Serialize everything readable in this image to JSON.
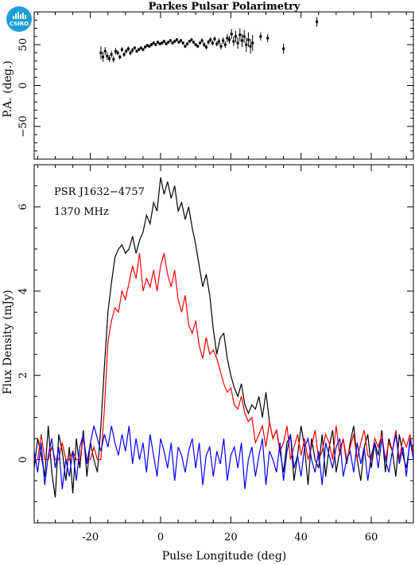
{
  "logo_text": "CSIRO",
  "chart_data": [
    {
      "type": "scatter",
      "title": "Parkes Pulsar Polarimetry",
      "xlabel": "",
      "ylabel": "P.A. (deg.)",
      "xlim": [
        -36,
        72
      ],
      "ylim": [
        -90,
        90
      ],
      "yticks": [
        -50,
        0,
        50
      ],
      "series": [
        {
          "color": "#000000",
          "x": [
            -17,
            -16.4,
            -15.8,
            -15.2,
            -14.6,
            -14,
            -13.4,
            -12.8,
            -12.2,
            -11.6,
            -11,
            -10.4,
            -9.8,
            -9.2,
            -8.6,
            -8,
            -7.4,
            -6.8,
            -6.2,
            -5.6,
            -5,
            -4.4,
            -3.8,
            -3.2,
            -2.6,
            -2,
            -1.4,
            -0.8,
            -0.2,
            0.4,
            1,
            1.6,
            2.2,
            2.8,
            3.4,
            4,
            4.6,
            5.2,
            5.8,
            6.4,
            7,
            7.6,
            8.2,
            8.8,
            9.4,
            10,
            10.6,
            11.2,
            11.8,
            12.4,
            13,
            13.6,
            14.2,
            14.8,
            15.4,
            16,
            16.6,
            17.2,
            17.8,
            18.4,
            19,
            19.6,
            20.2,
            20.8,
            21.4,
            22,
            22.6,
            23.2,
            23.8,
            24.4,
            25,
            25.6,
            26.2,
            28.5,
            30.5,
            35,
            44.5
          ],
          "y": [
            40,
            35,
            42,
            36,
            33,
            38,
            32,
            42,
            40,
            35,
            44,
            38,
            42,
            45,
            40,
            43,
            46,
            42,
            44,
            46,
            44,
            47,
            49,
            48,
            50,
            52,
            50,
            53,
            51,
            52,
            54,
            51,
            53,
            55,
            52,
            54,
            56,
            53,
            55,
            52,
            48,
            51,
            54,
            56,
            53,
            50,
            48,
            52,
            55,
            50,
            47,
            53,
            56,
            52,
            57,
            51,
            54,
            48,
            55,
            50,
            58,
            56,
            63,
            54,
            60,
            52,
            62,
            55,
            60,
            50,
            56,
            48,
            52,
            60,
            58,
            45,
            78
          ],
          "err": [
            8,
            6,
            5,
            5,
            4,
            4,
            4,
            4,
            3,
            3,
            3,
            3,
            3,
            3,
            3,
            3,
            2,
            2,
            2,
            2,
            2,
            2,
            2,
            2,
            2,
            2,
            2,
            2,
            2,
            2,
            2,
            2,
            2,
            2,
            2,
            2,
            2,
            2,
            2,
            2,
            2,
            2,
            2,
            2,
            2,
            2,
            2,
            2,
            3,
            3,
            3,
            3,
            3,
            3,
            3,
            3,
            4,
            4,
            4,
            4,
            5,
            5,
            6,
            6,
            7,
            7,
            8,
            8,
            8,
            9,
            9,
            9,
            10,
            5,
            5,
            6,
            6
          ]
        }
      ]
    },
    {
      "type": "line",
      "title": "",
      "xlabel": "Pulse Longitude (deg)",
      "ylabel": "Flux Density (mJy)",
      "xlim": [
        -36,
        72
      ],
      "ylim": [
        -1.5,
        7.0
      ],
      "xticks": [
        -20,
        0,
        20,
        40,
        60
      ],
      "yticks": [
        0,
        2,
        4,
        6
      ],
      "annotations": [
        "PSR J1632−4757",
        "1370 MHz"
      ],
      "series": [
        {
          "color": "#000000",
          "x": [
            -36,
            -35,
            -34,
            -33,
            -32,
            -31,
            -30,
            -29,
            -28,
            -27,
            -26,
            -25,
            -24,
            -23,
            -22,
            -21,
            -20,
            -19,
            -18,
            -17,
            -16,
            -15,
            -14,
            -13,
            -12,
            -11,
            -10,
            -9,
            -8,
            -7,
            -6,
            -5,
            -4,
            -3,
            -2,
            -1,
            0,
            1,
            2,
            3,
            4,
            5,
            6,
            7,
            8,
            9,
            10,
            11,
            12,
            13,
            14,
            15,
            16,
            17,
            18,
            19,
            20,
            21,
            22,
            23,
            24,
            25,
            26,
            27,
            28,
            29,
            30,
            31,
            32,
            33,
            34,
            35,
            36,
            37,
            38,
            39,
            40,
            41,
            42,
            43,
            44,
            45,
            46,
            47,
            48,
            49,
            50,
            51,
            52,
            53,
            54,
            55,
            56,
            57,
            58,
            59,
            60,
            61,
            62,
            63,
            64,
            65,
            66,
            67,
            68,
            69,
            70,
            71,
            72
          ],
          "y": [
            -0.2,
            0.5,
            0.1,
            -0.4,
            0.8,
            -0.3,
            -0.9,
            0.6,
            0.2,
            -0.5,
            0.3,
            -0.8,
            0.5,
            -0.2,
            0.7,
            -0.4,
            0.4,
            0.0,
            -0.3,
            0.8,
            2.2,
            3.5,
            4.2,
            4.8,
            5.0,
            5.1,
            4.9,
            5.0,
            5.3,
            4.9,
            5.2,
            5.4,
            5.8,
            5.6,
            6.1,
            5.9,
            6.7,
            6.3,
            6.6,
            6.2,
            6.5,
            5.9,
            6.1,
            5.7,
            6.0,
            5.5,
            5.1,
            4.6,
            4.1,
            4.4,
            3.9,
            3.1,
            2.5,
            2.9,
            3.0,
            2.4,
            2.0,
            1.7,
            1.5,
            1.8,
            1.3,
            1.1,
            1.3,
            1.2,
            1.5,
            1.0,
            1.6,
            0.9,
            0.5,
            0.7,
            0.2,
            -0.3,
            0.4,
            0.6,
            -0.5,
            0.1,
            0.8,
            0.3,
            -0.6,
            0.5,
            0.0,
            -0.2,
            0.6,
            -0.4,
            0.3,
            0.7,
            -0.3,
            0.2,
            0.5,
            -0.1,
            0.4,
            0.8,
            0.0,
            -0.5,
            0.3,
            0.6,
            -0.2,
            0.4,
            0.1,
            0.7,
            -0.3,
            0.5,
            0.2,
            -0.4,
            0.6,
            0.1,
            -0.2,
            0.4,
            0.3
          ],
          "name": ""
        },
        {
          "color": "#ff0000",
          "x": [
            -36,
            -35,
            -34,
            -33,
            -32,
            -31,
            -30,
            -29,
            -28,
            -27,
            -26,
            -25,
            -24,
            -23,
            -22,
            -21,
            -20,
            -19,
            -18,
            -17,
            -16,
            -15,
            -14,
            -13,
            -12,
            -11,
            -10,
            -9,
            -8,
            -7,
            -6,
            -5,
            -4,
            -3,
            -2,
            -1,
            0,
            1,
            2,
            3,
            4,
            5,
            6,
            7,
            8,
            9,
            10,
            11,
            12,
            13,
            14,
            15,
            16,
            17,
            18,
            19,
            20,
            21,
            22,
            23,
            24,
            25,
            26,
            27,
            28,
            29,
            30,
            31,
            32,
            33,
            34,
            35,
            36,
            37,
            38,
            39,
            40,
            41,
            42,
            43,
            44,
            45,
            46,
            47,
            48,
            49,
            50,
            51,
            52,
            53,
            54,
            55,
            56,
            57,
            58,
            59,
            60,
            61,
            62,
            63,
            64,
            65,
            66,
            67,
            68,
            69,
            70,
            71,
            72
          ],
          "y": [
            0.0,
            0.0,
            0.6,
            0.0,
            0.0,
            0.3,
            0.0,
            0.0,
            0.4,
            0.0,
            0.0,
            0.2,
            0.0,
            0.0,
            0.5,
            0.0,
            0.0,
            0.3,
            0.0,
            0.0,
            1.2,
            2.8,
            3.3,
            3.6,
            3.5,
            4.0,
            3.8,
            4.2,
            4.6,
            4.3,
            4.9,
            4.0,
            4.3,
            4.1,
            4.5,
            4.0,
            4.6,
            4.9,
            4.4,
            4.1,
            4.5,
            3.8,
            3.5,
            3.9,
            3.2,
            3.0,
            3.3,
            2.7,
            2.4,
            2.9,
            2.5,
            2.6,
            2.4,
            2.1,
            1.8,
            1.6,
            1.7,
            1.3,
            1.2,
            1.5,
            1.1,
            0.9,
            1.0,
            0.4,
            0.6,
            0.8,
            0.3,
            0.9,
            0.5,
            0.7,
            0.2,
            0.4,
            0.8,
            0.0,
            0.3,
            0.6,
            0.1,
            0.5,
            0.0,
            0.3,
            0.7,
            0.0,
            0.2,
            0.6,
            0.4,
            0.0,
            0.8,
            0.1,
            0.5,
            0.0,
            0.3,
            0.6,
            0.0,
            0.4,
            0.7,
            0.1,
            0.0,
            0.5,
            0.3,
            0.6,
            0.0,
            0.4,
            0.2,
            0.7,
            0.0,
            0.5,
            0.3,
            0.6,
            0.1
          ],
          "name": ""
        },
        {
          "color": "#0000ff",
          "x": [
            -36,
            -35,
            -34,
            -33,
            -32,
            -31,
            -30,
            -29,
            -28,
            -27,
            -26,
            -25,
            -24,
            -23,
            -22,
            -21,
            -20,
            -19,
            -18,
            -17,
            -16,
            -15,
            -14,
            -13,
            -12,
            -11,
            -10,
            -9,
            -8,
            -7,
            -6,
            -5,
            -4,
            -3,
            -2,
            -1,
            0,
            1,
            2,
            3,
            4,
            5,
            6,
            7,
            8,
            9,
            10,
            11,
            12,
            13,
            14,
            15,
            16,
            17,
            18,
            19,
            20,
            21,
            22,
            23,
            24,
            25,
            26,
            27,
            28,
            29,
            30,
            31,
            32,
            33,
            34,
            35,
            36,
            37,
            38,
            39,
            40,
            41,
            42,
            43,
            44,
            45,
            46,
            47,
            48,
            49,
            50,
            51,
            52,
            53,
            54,
            55,
            56,
            57,
            58,
            59,
            60,
            61,
            62,
            63,
            64,
            65,
            66,
            67,
            68,
            69,
            70,
            71,
            72
          ],
          "y": [
            0.2,
            -0.3,
            0.4,
            -0.6,
            0.1,
            0.5,
            -0.2,
            0.3,
            -0.7,
            0.0,
            -0.4,
            0.2,
            -0.5,
            0.3,
            0.6,
            -0.1,
            0.4,
            0.8,
            0.5,
            0.2,
            0.6,
            0.3,
            0.8,
            0.4,
            0.1,
            0.6,
            0.2,
            0.8,
            -0.1,
            0.5,
            0.0,
            0.4,
            -0.3,
            0.6,
            0.1,
            -0.4,
            0.5,
            0.2,
            -0.2,
            0.4,
            -0.5,
            0.3,
            0.1,
            -0.3,
            0.2,
            0.5,
            -0.2,
            0.4,
            -0.6,
            0.1,
            0.3,
            -0.4,
            0.2,
            -0.1,
            0.5,
            -0.5,
            0.1,
            0.3,
            -0.2,
            0.4,
            -0.7,
            0.0,
            0.3,
            -0.4,
            0.1,
            0.5,
            -0.6,
            0.2,
            0.0,
            -0.3,
            0.4,
            -0.5,
            0.2,
            0.6,
            -0.2,
            0.1,
            -0.4,
            0.3,
            0.5,
            0.0,
            -0.3,
            0.2,
            -0.6,
            0.4,
            0.1,
            -0.2,
            0.3,
            0.5,
            -0.4,
            0.0,
            0.2,
            -0.3,
            0.4,
            -0.1,
            0.3,
            -0.5,
            0.1,
            0.4,
            -0.2,
            0.5,
            0.0,
            -0.3,
            0.2,
            0.6,
            -0.1,
            0.3,
            -0.4,
            0.5,
            0.0
          ],
          "name": ""
        }
      ]
    }
  ]
}
